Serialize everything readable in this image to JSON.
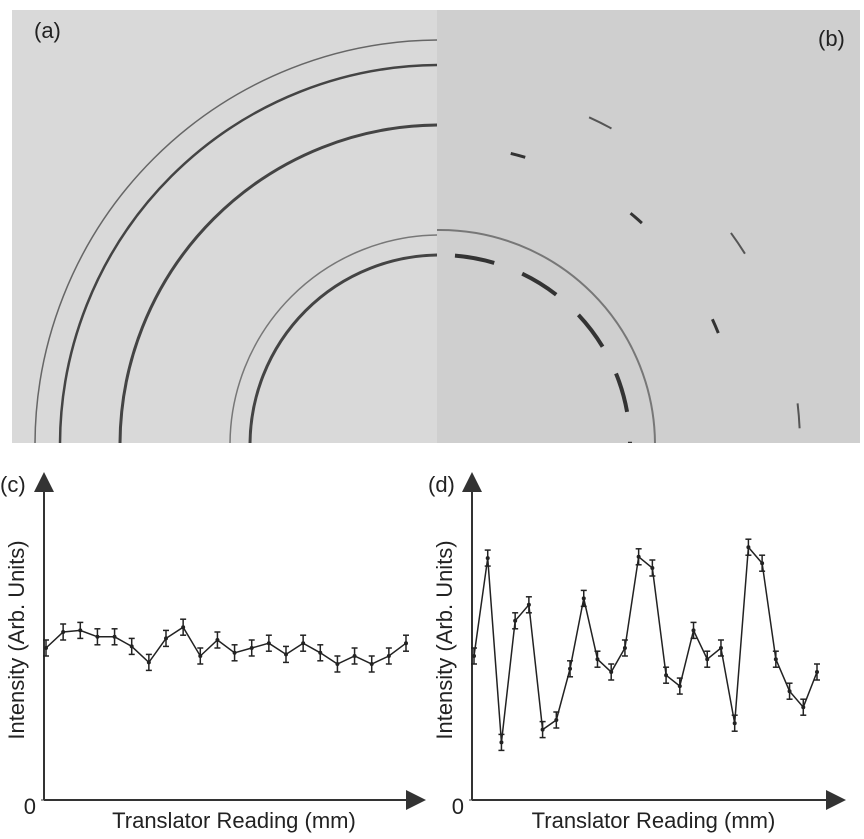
{
  "panels": {
    "a": "(a)",
    "b": "(b)"
  },
  "chart_data": [
    {
      "type": "line",
      "panel": "(c)",
      "y_label": "Intensity (Arb. Units)",
      "x_label": "Translator Reading (mm)",
      "color": "#222222",
      "ylim": [
        0,
        100
      ],
      "yticks": [
        0
      ],
      "error": 2.5,
      "values": [
        47.5,
        52.5,
        53,
        51,
        51,
        48,
        43,
        50.5,
        54,
        45,
        50,
        46,
        47.5,
        49,
        45.5,
        49,
        46,
        42.5,
        45,
        42.5,
        45,
        49
      ]
    },
    {
      "type": "line",
      "panel": "(d)",
      "y_label": "Intensity (Arb. Units)",
      "x_label": "Translator Reading (mm)",
      "color": "#222222",
      "ylim": [
        0,
        100
      ],
      "yticks": [
        0
      ],
      "error": 2.5,
      "values": [
        45,
        75.6,
        18,
        56,
        61,
        22,
        25,
        41,
        63,
        44,
        40,
        47.5,
        76,
        72.5,
        39,
        35.6,
        53,
        44,
        47.5,
        24,
        79,
        74,
        44,
        34,
        29,
        40
      ]
    }
  ]
}
